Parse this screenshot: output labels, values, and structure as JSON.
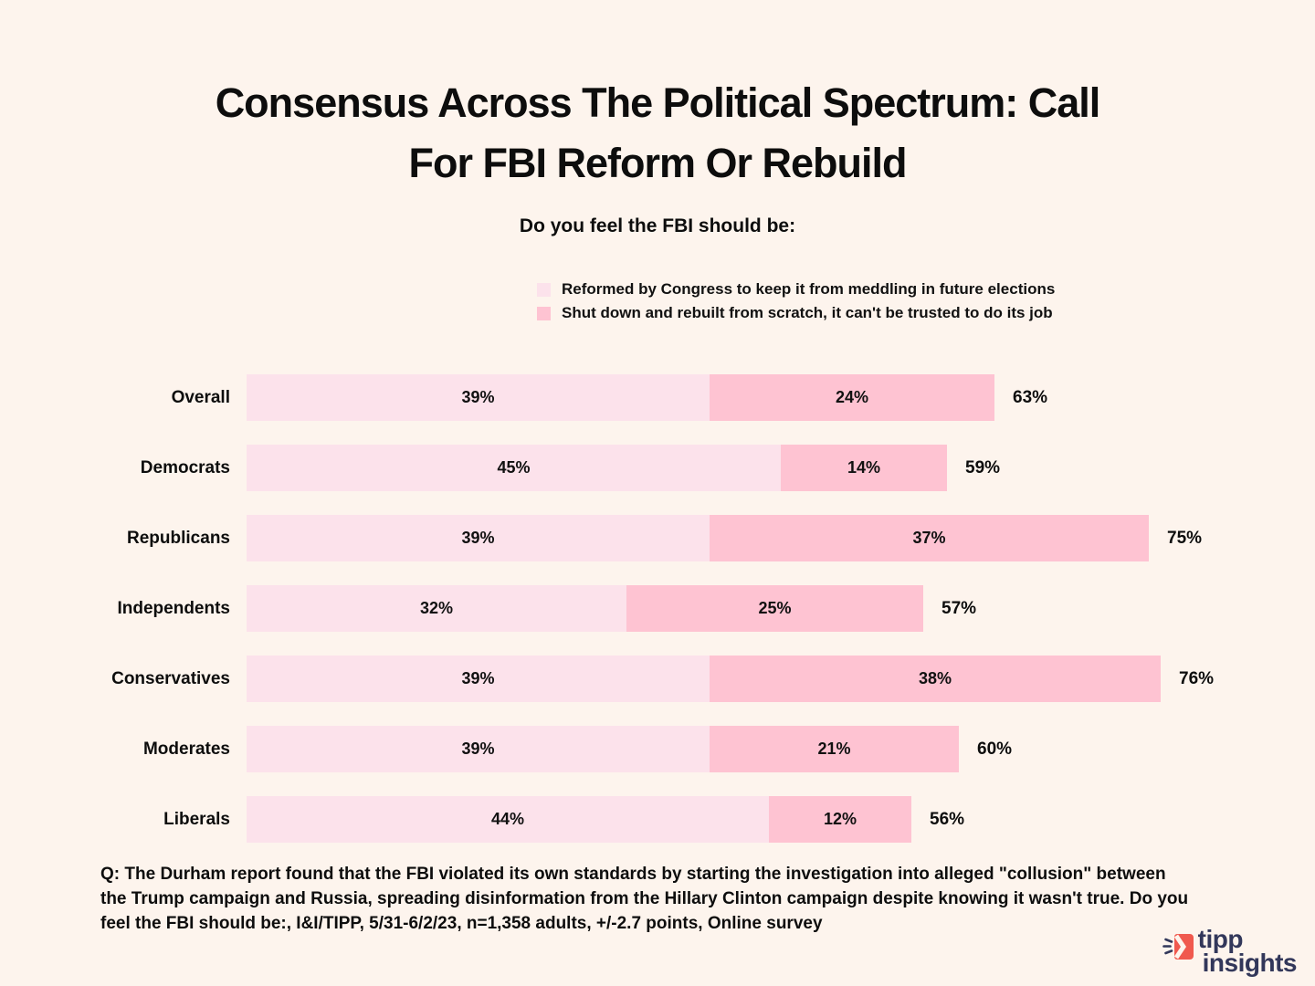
{
  "title": {
    "line1": "Consensus Across The Political Spectrum: Call",
    "line2": "For FBI Reform Or Rebuild"
  },
  "subtitle": "Do you feel the FBI should be:",
  "chart_data": {
    "type": "bar",
    "orientation": "horizontal",
    "stacked": true,
    "grid": false,
    "legend_position": "top-right",
    "categories": [
      "Overall",
      "Democrats",
      "Republicans",
      "Independents",
      "Conservatives",
      "Moderates",
      "Liberals"
    ],
    "series": [
      {
        "name": "Reformed by Congress to keep it from meddling in future elections",
        "color": "#FCE2EB",
        "values": [
          39,
          45,
          39,
          32,
          39,
          39,
          44
        ]
      },
      {
        "name": "Shut down and rebuilt from scratch, it can't be trusted to do its job",
        "color": "#FEC3D2",
        "values": [
          24,
          14,
          37,
          25,
          38,
          21,
          12
        ]
      }
    ],
    "totals": [
      63,
      59,
      75,
      57,
      76,
      60,
      56
    ],
    "value_suffix": "%",
    "xlim": [
      0,
      82
    ]
  },
  "footer": {
    "note": "Q: The Durham report found that the FBI violated its own standards by starting the investigation into alleged \"collusion\" between the Trump campaign and Russia, spreading disinformation from the Hillary Clinton campaign despite knowing it wasn't true. Do you feel the FBI should be:, I&I/TIPP, 5/31-6/2/23, n=1,358 adults, +/-2.7 points, Online survey"
  },
  "logo": {
    "line1": "tipp",
    "line2": "insights",
    "text_color": "#32375A",
    "icon_color": "#F0594E"
  },
  "colors": {
    "background": "#FDF4ED",
    "series_light": "#FCE2EB",
    "series_dark": "#FEC3D2",
    "text": "#0d0d0d"
  }
}
